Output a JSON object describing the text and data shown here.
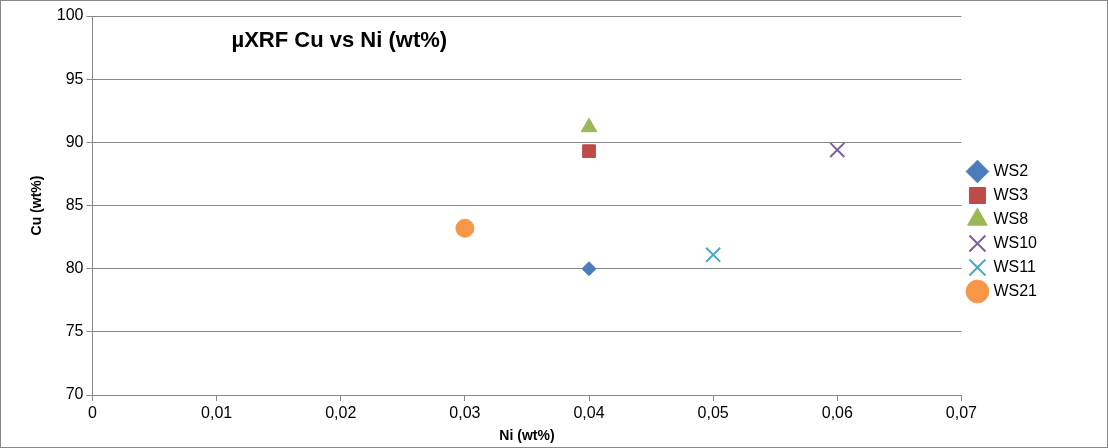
{
  "chart_data": {
    "type": "scatter",
    "title": "µXRF Cu vs Ni (wt%)",
    "xlabel": "Ni (wt%)",
    "ylabel": "Cu (wt%)",
    "series": [
      {
        "name": "WS2",
        "color": "#4a7ebb",
        "marker": "diamond",
        "x": [
          0.04
        ],
        "values": [
          80.0
        ]
      },
      {
        "name": "WS3",
        "color": "#be4b48",
        "marker": "square",
        "x": [
          0.04
        ],
        "values": [
          89.3
        ]
      },
      {
        "name": "WS8",
        "color": "#98b954",
        "marker": "triangle",
        "x": [
          0.04
        ],
        "values": [
          91.2
        ]
      },
      {
        "name": "WS10",
        "color": "#7d60a0",
        "marker": "cross",
        "x": [
          0.06
        ],
        "values": [
          89.4
        ]
      },
      {
        "name": "WS11",
        "color": "#46aac5",
        "marker": "cross",
        "x": [
          0.05
        ],
        "values": [
          81.1
        ]
      },
      {
        "name": "WS21",
        "color": "#f79646",
        "marker": "circle",
        "x": [
          0.03
        ],
        "values": [
          83.2
        ]
      }
    ],
    "xlim": [
      0,
      0.07
    ],
    "xticks": [
      0,
      {
        "value": 0.01,
        "label": "0,01"
      },
      {
        "value": 0.02,
        "label": "0,02"
      },
      {
        "value": 0.03,
        "label": "0,03"
      },
      {
        "value": 0.04,
        "label": "0,04"
      },
      {
        "value": 0.05,
        "label": "0,05"
      },
      {
        "value": 0.06,
        "label": "0,06"
      },
      {
        "value": 0.07,
        "label": "0,07"
      }
    ],
    "ylim": [
      70,
      100
    ],
    "yticks": [
      70,
      75,
      80,
      85,
      90,
      95,
      100
    ],
    "grid": "y",
    "legend": "right"
  }
}
